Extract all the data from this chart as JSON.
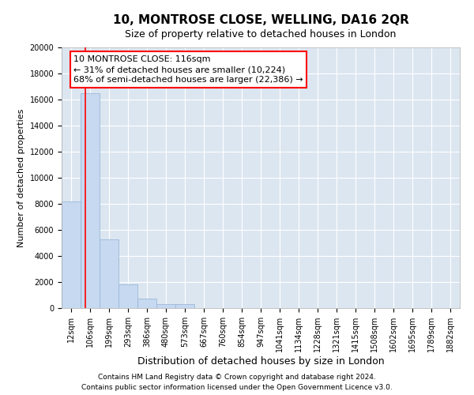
{
  "title": "10, MONTROSE CLOSE, WELLING, DA16 2QR",
  "subtitle": "Size of property relative to detached houses in London",
  "xlabel": "Distribution of detached houses by size in London",
  "ylabel": "Number of detached properties",
  "categories": [
    "12sqm",
    "106sqm",
    "199sqm",
    "293sqm",
    "386sqm",
    "480sqm",
    "573sqm",
    "667sqm",
    "760sqm",
    "854sqm",
    "947sqm",
    "1041sqm",
    "1134sqm",
    "1228sqm",
    "1321sqm",
    "1415sqm",
    "1508sqm",
    "1602sqm",
    "1695sqm",
    "1789sqm",
    "1882sqm"
  ],
  "bar_values": [
    8200,
    16500,
    5300,
    1800,
    750,
    300,
    280,
    0,
    0,
    0,
    0,
    0,
    0,
    0,
    0,
    0,
    0,
    0,
    0,
    0,
    0
  ],
  "bar_color": "#c6d9f0",
  "bar_edge_color": "#9ab8d8",
  "ylim": [
    0,
    20000
  ],
  "yticks": [
    0,
    2000,
    4000,
    6000,
    8000,
    10000,
    12000,
    14000,
    16000,
    18000,
    20000
  ],
  "red_line_x": 0.75,
  "annotation_text": "10 MONTROSE CLOSE: 116sqm\n← 31% of detached houses are smaller (10,224)\n68% of semi-detached houses are larger (22,386) →",
  "background_color": "#dce6f1",
  "footer_line1": "Contains HM Land Registry data © Crown copyright and database right 2024.",
  "footer_line2": "Contains public sector information licensed under the Open Government Licence v3.0.",
  "title_fontsize": 11,
  "subtitle_fontsize": 9,
  "ylabel_fontsize": 8,
  "xlabel_fontsize": 9,
  "tick_fontsize": 7,
  "annotation_fontsize": 8,
  "footer_fontsize": 6.5
}
